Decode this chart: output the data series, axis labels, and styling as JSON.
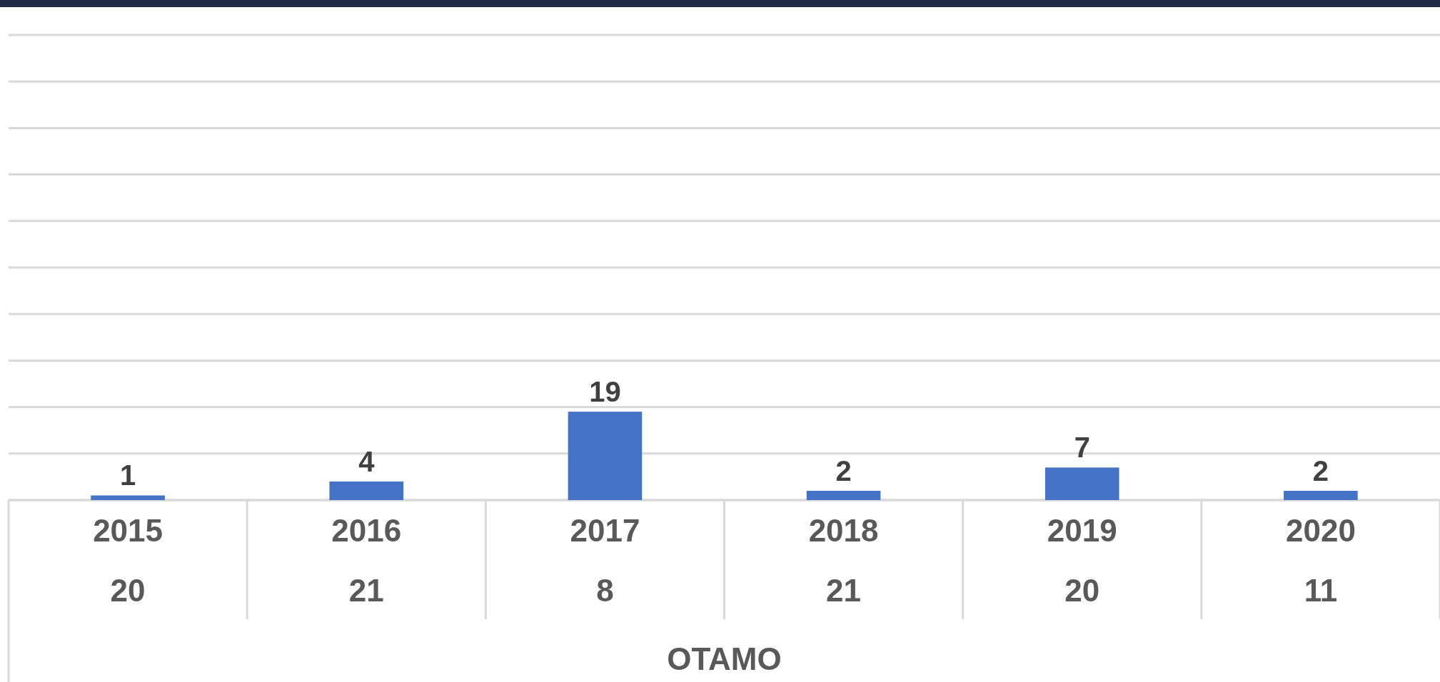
{
  "chart_data": {
    "type": "bar",
    "categories": [
      "2015\n20",
      "2016\n21",
      "2017\n8",
      "2018\n21",
      "2019\n20",
      "2020\n11"
    ],
    "values": [
      1,
      4,
      19,
      2,
      7,
      2
    ],
    "color": "#4472c4",
    "data_labels": true,
    "xlabel": "OTAMO",
    "ylim": [
      0,
      100
    ],
    "yticks": [
      {
        "value": 0,
        "label": null
      },
      {
        "value": 10,
        "label": null
      },
      {
        "value": 20,
        "label": null
      },
      {
        "value": 30,
        "label": null
      },
      {
        "value": 40,
        "label": null
      },
      {
        "value": 50,
        "label": null
      },
      {
        "value": 60,
        "label": null
      },
      {
        "value": 70,
        "label": null
      },
      {
        "value": 80,
        "label": null
      },
      {
        "value": 90,
        "label": null
      },
      {
        "value": 100,
        "label": null
      }
    ],
    "grid": "y",
    "tick_labels": "x"
  }
}
